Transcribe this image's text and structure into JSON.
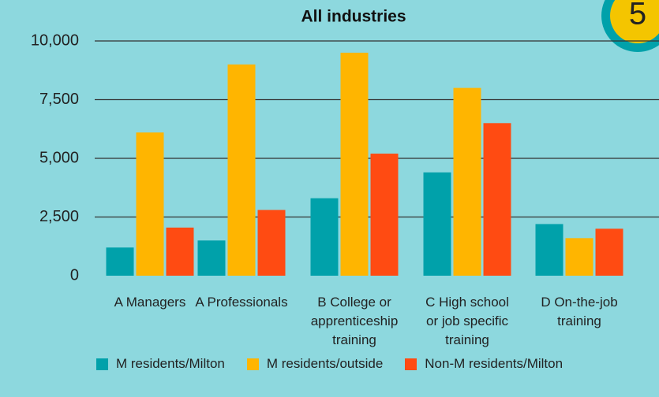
{
  "chart_data": {
    "type": "bar",
    "title": "All industries",
    "badge": "5",
    "categories": [
      "A Managers",
      "A Professionals",
      "B College or\napprenticeship\ntraining",
      "C High school\nor job specific\ntraining",
      "D On-the-job\ntraining"
    ],
    "series": [
      {
        "name": "M residents/Milton",
        "color": "#00a1aa",
        "values": [
          1200,
          1500,
          3300,
          4400,
          2200
        ]
      },
      {
        "name": "M residents/outside",
        "color": "#ffb500",
        "values": [
          6100,
          9000,
          9500,
          8000,
          1600
        ]
      },
      {
        "name": "Non-M residents/Milton",
        "color": "#ff4b12",
        "values": [
          2050,
          2800,
          5200,
          6500,
          2000
        ]
      }
    ],
    "ylim": [
      0,
      10000
    ],
    "yticks": [
      0,
      {
        "value": 2500,
        "label": "2,500"
      },
      {
        "value": 5000,
        "label": "5,000"
      },
      {
        "value": 7500,
        "label": "7,500"
      },
      {
        "value": 10000,
        "label": "10,000"
      }
    ],
    "grid": true
  }
}
